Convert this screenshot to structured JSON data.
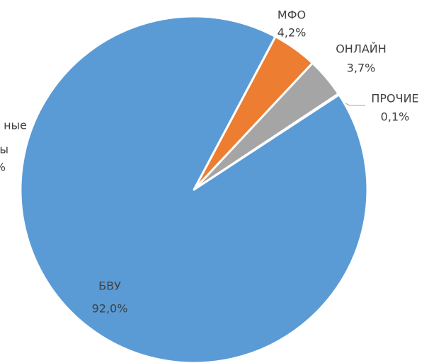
{
  "chart_data": {
    "type": "pie",
    "categories": [
      "МФО",
      "ОНЛАЙН",
      "ПРОЧИЕ",
      "БВУ"
    ],
    "values": [
      4.2,
      3.7,
      0.1,
      92.0
    ],
    "value_labels": [
      "4,2%",
      "3,7%",
      "0,1%",
      "92,0%"
    ],
    "colors": [
      "#ed7d31",
      "#a5a5a5",
      "#ffc000",
      "#5b9bd5"
    ],
    "annotations": [
      "ные",
      "ы",
      "%"
    ]
  }
}
